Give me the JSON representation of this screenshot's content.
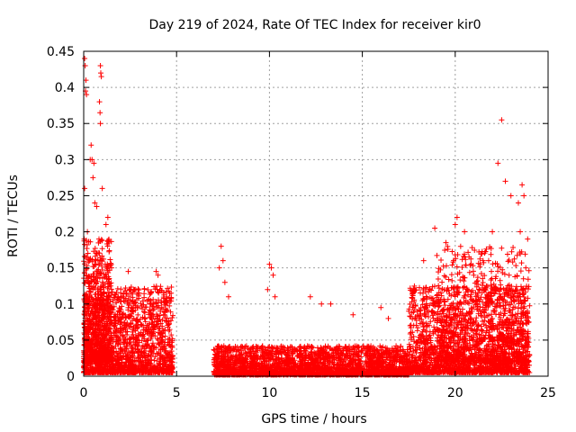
{
  "chart_data": {
    "type": "scatter",
    "title": "Day 219 of 2024, Rate Of TEC Index for receiver kir0",
    "xlabel": "GPS time / hours",
    "ylabel": "ROTI / TECUs",
    "xlim": [
      0,
      25
    ],
    "ylim": [
      0,
      0.45
    ],
    "x_ticks": [
      "0",
      "5",
      "10",
      "15",
      "20",
      "25"
    ],
    "y_ticks": [
      "0",
      "0.05",
      "0.1",
      "0.15",
      "0.2",
      "0.25",
      "0.3",
      "0.35",
      "0.4",
      "0.45"
    ],
    "grid": true,
    "marker": "+",
    "series": [
      {
        "name": "ROTI",
        "color": "#ff0000",
        "points": [
          [
            0.05,
            0.44
          ],
          [
            0.08,
            0.43
          ],
          [
            0.1,
            0.395
          ],
          [
            0.12,
            0.41
          ],
          [
            0.15,
            0.39
          ],
          [
            0.9,
            0.43
          ],
          [
            0.92,
            0.42
          ],
          [
            0.95,
            0.415
          ],
          [
            0.85,
            0.38
          ],
          [
            0.88,
            0.365
          ],
          [
            0.9,
            0.35
          ],
          [
            0.4,
            0.32
          ],
          [
            0.45,
            0.3
          ],
          [
            0.35,
            0.3
          ],
          [
            0.55,
            0.295
          ],
          [
            0.5,
            0.275
          ],
          [
            0.05,
            0.26
          ],
          [
            1.0,
            0.26
          ],
          [
            0.6,
            0.24
          ],
          [
            0.7,
            0.235
          ],
          [
            1.3,
            0.22
          ],
          [
            1.2,
            0.21
          ],
          [
            0.2,
            0.2
          ],
          [
            1.5,
            0.15
          ],
          [
            2.4,
            0.145
          ],
          [
            3.9,
            0.145
          ],
          [
            4.0,
            0.14
          ],
          [
            2.8,
            0.12
          ],
          [
            3.6,
            0.1
          ],
          [
            4.3,
            0.085
          ],
          [
            7.4,
            0.18
          ],
          [
            7.5,
            0.16
          ],
          [
            7.3,
            0.15
          ],
          [
            7.6,
            0.13
          ],
          [
            7.8,
            0.11
          ],
          [
            10.0,
            0.155
          ],
          [
            10.1,
            0.15
          ],
          [
            10.2,
            0.14
          ],
          [
            9.9,
            0.12
          ],
          [
            10.3,
            0.11
          ],
          [
            12.2,
            0.11
          ],
          [
            12.8,
            0.1
          ],
          [
            13.3,
            0.1
          ],
          [
            14.5,
            0.085
          ],
          [
            16.0,
            0.095
          ],
          [
            16.4,
            0.08
          ],
          [
            17.5,
            0.09
          ],
          [
            18.3,
            0.16
          ],
          [
            18.9,
            0.205
          ],
          [
            19.5,
            0.185
          ],
          [
            20.0,
            0.21
          ],
          [
            20.1,
            0.22
          ],
          [
            20.5,
            0.2
          ],
          [
            21.0,
            0.14
          ],
          [
            21.5,
            0.16
          ],
          [
            22.0,
            0.2
          ],
          [
            22.3,
            0.295
          ],
          [
            22.5,
            0.355
          ],
          [
            22.7,
            0.27
          ],
          [
            23.0,
            0.25
          ],
          [
            23.4,
            0.24
          ],
          [
            23.6,
            0.265
          ],
          [
            23.7,
            0.25
          ],
          [
            23.5,
            0.2
          ],
          [
            23.9,
            0.19
          ],
          [
            23.8,
            0.15
          ],
          [
            22.9,
            0.14
          ],
          [
            21.8,
            0.16
          ]
        ],
        "clusters": [
          {
            "x_range": [
              0.0,
              4.8
            ],
            "y_base": 0.005,
            "y_spread": 0.12,
            "count": 1600
          },
          {
            "x_range": [
              0.0,
              1.5
            ],
            "y_base": 0.02,
            "y_spread": 0.17,
            "count": 700
          },
          {
            "x_range": [
              7.0,
              17.5
            ],
            "y_base": 0.002,
            "y_spread": 0.04,
            "count": 2600
          },
          {
            "x_range": [
              17.5,
              24.0
            ],
            "y_base": 0.005,
            "y_spread": 0.12,
            "count": 1900
          },
          {
            "x_range": [
              19.0,
              24.0
            ],
            "y_base": 0.02,
            "y_spread": 0.16,
            "count": 700
          }
        ]
      }
    ]
  }
}
